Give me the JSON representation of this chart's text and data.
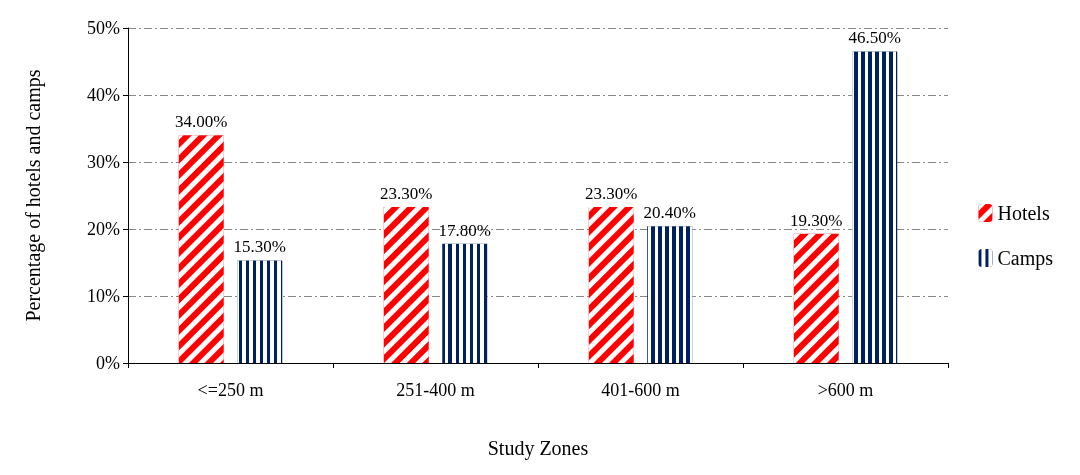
{
  "chart_data": {
    "type": "bar",
    "xlabel": "Study Zones",
    "ylabel": "Percentage of hotels and camps",
    "categories": [
      "<=250 m",
      "251-400 m",
      "401-600 m",
      ">600 m"
    ],
    "series": [
      {
        "name": "Hotels",
        "color": "#ff0000",
        "values": [
          34.0,
          23.3,
          23.3,
          19.3
        ],
        "value_labels": [
          "34.00%",
          "23.30%",
          "23.30%",
          "19.30%"
        ]
      },
      {
        "name": "Camps",
        "color": "#002060",
        "values": [
          15.3,
          17.8,
          20.4,
          46.5
        ],
        "value_labels": [
          "15.30%",
          "17.80%",
          "20.40%",
          "46.50%"
        ]
      }
    ],
    "ylim": [
      0,
      50
    ],
    "yticks": [
      {
        "value": 0,
        "label": "0%"
      },
      {
        "value": 10,
        "label": "10%"
      },
      {
        "value": 20,
        "label": "20%"
      },
      {
        "value": 30,
        "label": "30%"
      },
      {
        "value": 40,
        "label": "40%"
      },
      {
        "value": 50,
        "label": "50%"
      }
    ],
    "grid": "y",
    "legend": "right"
  }
}
